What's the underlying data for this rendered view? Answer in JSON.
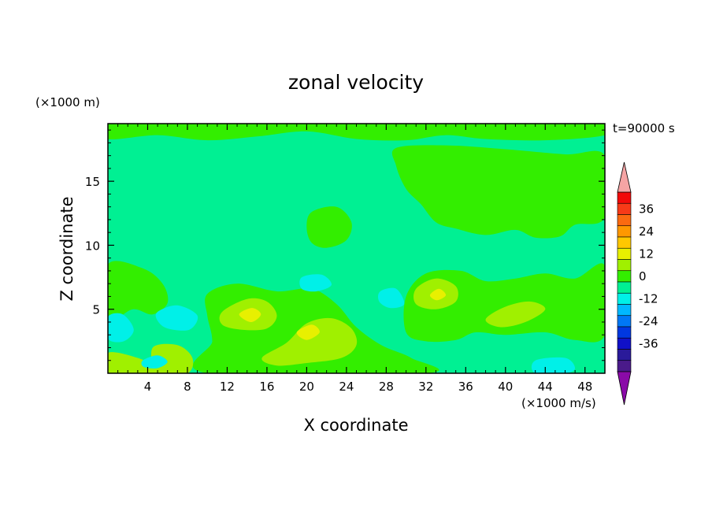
{
  "chart_data": {
    "type": "contour",
    "title": "zonal velocity",
    "xlabel": "X coordinate",
    "ylabel": "Z coordinate",
    "x_units": "(×1000 m/s)",
    "y_units": "(×1000 m)",
    "time_label": "t=90000 s",
    "xlim": [
      0,
      50
    ],
    "ylim": [
      0,
      19.5
    ],
    "x_ticks": [
      4,
      8,
      12,
      16,
      20,
      24,
      28,
      32,
      36,
      40,
      44,
      48
    ],
    "y_ticks": [
      5,
      10,
      15
    ],
    "colorbar": {
      "labels": [
        "36",
        "24",
        "12",
        "0",
        "-12",
        "-24",
        "-36"
      ],
      "label_values": [
        36,
        24,
        12,
        0,
        -12,
        -24,
        -36
      ],
      "levels": [
        36,
        30,
        24,
        18,
        12,
        6,
        0,
        -6,
        -12,
        -18,
        -24,
        -30,
        -36
      ],
      "colors": [
        "#f20a0a",
        "#f73a18",
        "#fb6a10",
        "#ff9800",
        "#ffc800",
        "#e8f000",
        "#a0f000",
        "#33ee00",
        "#00f093",
        "#00f0e8",
        "#00b8ff",
        "#0078f5",
        "#0038e0",
        "#1010c8",
        "#2a1a9a",
        "#4a1a8a"
      ],
      "over_color": "#f5a4a4",
      "under_color": "#8a0aa8"
    },
    "field_colors": {
      "background": "#00f093",
      "positive_weak": "#33ee00",
      "positive_mid": "#a0f000",
      "positive_strong": "#e8f000",
      "negative_weak": "#00f0e8",
      "negative_mid": "#00b8ff"
    },
    "regions": [
      {
        "level": "positive_weak",
        "points": [
          [
            0,
            19.5
          ],
          [
            50,
            19.5
          ],
          [
            50,
            18.6
          ],
          [
            44,
            18.2
          ],
          [
            38,
            18.3
          ],
          [
            34,
            18.6
          ],
          [
            30,
            18.2
          ],
          [
            25,
            18.3
          ],
          [
            20,
            18.9
          ],
          [
            15,
            18.5
          ],
          [
            10,
            18.2
          ],
          [
            5,
            18.6
          ],
          [
            0,
            18.3
          ]
        ]
      },
      {
        "level": "positive_weak",
        "points": [
          [
            29,
            17.6
          ],
          [
            34,
            17.8
          ],
          [
            40,
            17.5
          ],
          [
            46,
            17.1
          ],
          [
            50,
            17
          ],
          [
            50,
            12.2
          ],
          [
            47,
            11.6
          ],
          [
            45.5,
            10.7
          ],
          [
            43,
            10.6
          ],
          [
            41,
            11.2
          ],
          [
            38,
            10.8
          ],
          [
            35,
            11.3
          ],
          [
            33,
            11.8
          ],
          [
            31.5,
            13.2
          ],
          [
            30,
            14.4
          ],
          [
            29,
            16.2
          ]
        ]
      },
      {
        "level": "positive_weak",
        "points": [
          [
            20.5,
            12.6
          ],
          [
            23,
            13
          ],
          [
            24.5,
            11.8
          ],
          [
            24,
            10.4
          ],
          [
            22,
            9.8
          ],
          [
            20.5,
            10.2
          ],
          [
            20,
            11.4
          ]
        ]
      },
      {
        "level": "positive_weak",
        "points": [
          [
            0,
            8.5
          ],
          [
            3.5,
            8.2
          ],
          [
            5.5,
            7
          ],
          [
            6,
            5.5
          ],
          [
            4.5,
            4.6
          ],
          [
            2.5,
            5
          ],
          [
            0,
            4.2
          ]
        ]
      },
      {
        "level": "positive_weak",
        "points": [
          [
            10,
            6.2
          ],
          [
            13,
            7
          ],
          [
            17,
            6.4
          ],
          [
            20.5,
            6.6
          ],
          [
            23,
            5.4
          ],
          [
            25,
            3.6
          ],
          [
            27.5,
            2.2
          ],
          [
            30.5,
            1.2
          ],
          [
            32,
            0
          ],
          [
            10,
            0
          ],
          [
            10.5,
            2.5
          ],
          [
            10,
            4.5
          ]
        ]
      },
      {
        "level": "positive_weak",
        "points": [
          [
            30,
            6
          ],
          [
            32,
            7.8
          ],
          [
            35.5,
            8
          ],
          [
            38,
            7.2
          ],
          [
            41,
            7.4
          ],
          [
            44,
            7.8
          ],
          [
            47,
            7.4
          ],
          [
            50,
            8.4
          ],
          [
            50,
            3
          ],
          [
            47,
            2.6
          ],
          [
            44,
            3.2
          ],
          [
            40,
            3
          ],
          [
            37,
            3.2
          ],
          [
            35,
            2.6
          ],
          [
            32,
            2.5
          ],
          [
            30,
            3.2
          ]
        ]
      },
      {
        "level": "positive_mid",
        "points": [
          [
            11.5,
            4.8
          ],
          [
            14,
            5.8
          ],
          [
            16,
            5.6
          ],
          [
            17,
            4.5
          ],
          [
            16,
            3.5
          ],
          [
            13.5,
            3.4
          ],
          [
            11.5,
            3.8
          ]
        ]
      },
      {
        "level": "positive_mid",
        "points": [
          [
            15.5,
            1.2
          ],
          [
            18,
            2.4
          ],
          [
            20,
            3.9
          ],
          [
            22.5,
            4.3
          ],
          [
            24.5,
            3.5
          ],
          [
            25,
            2.2
          ],
          [
            23.5,
            1.2
          ],
          [
            20,
            0.8
          ],
          [
            17,
            0.6
          ]
        ]
      },
      {
        "level": "positive_mid",
        "points": [
          [
            31,
            6.6
          ],
          [
            33,
            7.4
          ],
          [
            35,
            6.8
          ],
          [
            35,
            5.6
          ],
          [
            33,
            5
          ],
          [
            31,
            5.4
          ]
        ]
      },
      {
        "level": "positive_mid",
        "points": [
          [
            38,
            4.2
          ],
          [
            40,
            5.2
          ],
          [
            42.5,
            5.6
          ],
          [
            44,
            5
          ],
          [
            42,
            4
          ],
          [
            39.5,
            3.6
          ]
        ]
      },
      {
        "level": "positive_mid",
        "points": [
          [
            0,
            1.6
          ],
          [
            3,
            1.2
          ],
          [
            5,
            0.4
          ],
          [
            5,
            0
          ],
          [
            0,
            0
          ]
        ]
      },
      {
        "level": "positive_mid",
        "points": [
          [
            4.5,
            2
          ],
          [
            7,
            2.2
          ],
          [
            8.5,
            1.2
          ],
          [
            8,
            0
          ],
          [
            5,
            0
          ]
        ]
      },
      {
        "level": "positive_strong",
        "points": [
          [
            13.2,
            4.6
          ],
          [
            14.5,
            5.1
          ],
          [
            15.4,
            4.6
          ],
          [
            14.4,
            4
          ]
        ]
      },
      {
        "level": "positive_strong",
        "points": [
          [
            19,
            3.2
          ],
          [
            20.5,
            3.8
          ],
          [
            21.3,
            3.2
          ],
          [
            20,
            2.6
          ]
        ]
      },
      {
        "level": "positive_strong",
        "points": [
          [
            32.4,
            6.1
          ],
          [
            33.3,
            6.6
          ],
          [
            34,
            6.1
          ],
          [
            33.1,
            5.7
          ]
        ]
      },
      {
        "level": "negative_weak",
        "points": [
          [
            0,
            4.4
          ],
          [
            1.5,
            4.6
          ],
          [
            2.6,
            3.4
          ],
          [
            1.6,
            2.5
          ],
          [
            0,
            2.7
          ]
        ]
      },
      {
        "level": "negative_weak",
        "points": [
          [
            5,
            4.8
          ],
          [
            7,
            5.3
          ],
          [
            9,
            4.5
          ],
          [
            8.2,
            3.4
          ],
          [
            6,
            3.5
          ],
          [
            5,
            4.1
          ]
        ]
      },
      {
        "level": "negative_weak",
        "points": [
          [
            19.5,
            7.5
          ],
          [
            21.5,
            7.7
          ],
          [
            22.5,
            6.9
          ],
          [
            21,
            6.4
          ],
          [
            19.5,
            6.6
          ]
        ]
      },
      {
        "level": "negative_weak",
        "points": [
          [
            27.4,
            6.4
          ],
          [
            29,
            6.6
          ],
          [
            29.8,
            5.4
          ],
          [
            28.4,
            5.1
          ],
          [
            27.3,
            5.6
          ]
        ]
      },
      {
        "level": "negative_weak",
        "points": [
          [
            43,
            1
          ],
          [
            46,
            1.2
          ],
          [
            47,
            0.4
          ],
          [
            46,
            0
          ],
          [
            43,
            0
          ]
        ]
      },
      {
        "level": "negative_weak",
        "points": [
          [
            3.5,
            1
          ],
          [
            5,
            1.4
          ],
          [
            6,
            0.9
          ],
          [
            5,
            0.4
          ],
          [
            3.6,
            0.5
          ]
        ]
      }
    ]
  }
}
